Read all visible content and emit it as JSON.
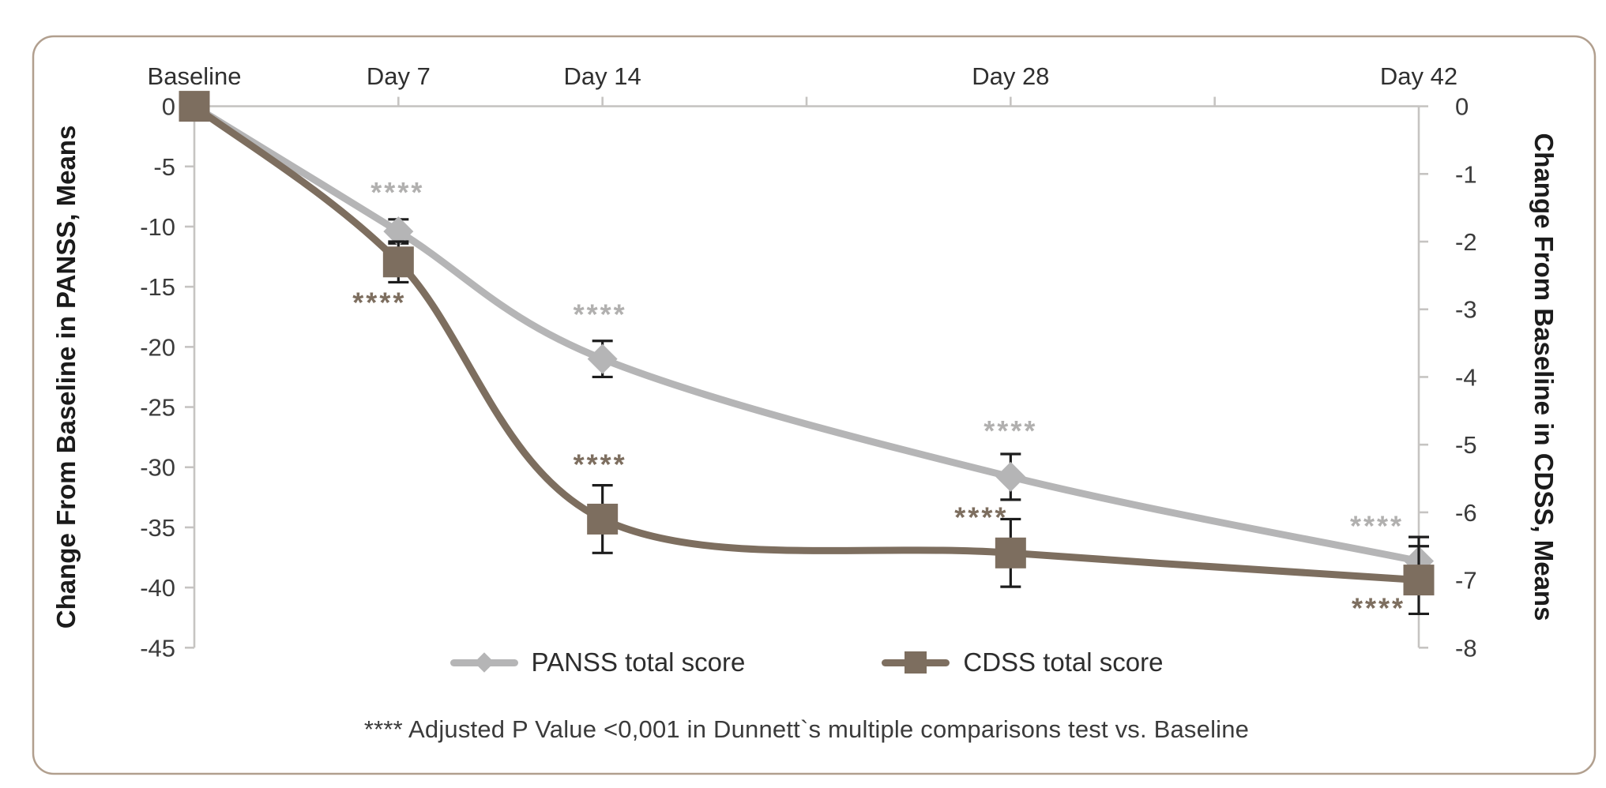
{
  "figure": {
    "background": "#ffffff",
    "border_color": "#b19f8e"
  },
  "chart_data": {
    "type": "line",
    "title": "",
    "grid": false,
    "axis_line_color": "#c6c4c2",
    "error_bar_color": "#1d1d1d",
    "text_color": "#3b3b3b",
    "x_axis": {
      "position": "top",
      "range_days": [
        0,
        42
      ],
      "tick_days": [
        7,
        14,
        21,
        28,
        35
      ],
      "labels": [
        {
          "day": 0,
          "text": "Baseline"
        },
        {
          "day": 7,
          "text": "Day 7"
        },
        {
          "day": 14,
          "text": "Day 14"
        },
        {
          "day": 28,
          "text": "Day 28"
        },
        {
          "day": 42,
          "text": "Day 42"
        }
      ]
    },
    "left_axis": {
      "title": "Change From Baseline in PANSS, Means",
      "max": 0,
      "min": -45,
      "tick_step": 5,
      "tick_labels": [
        "0",
        "-5",
        "-10",
        "-15",
        "-20",
        "-25",
        "-30",
        "-35",
        "-40",
        "-45"
      ]
    },
    "right_axis": {
      "title": "Change From Baseline in CDSS, Means",
      "max": 0,
      "min": -8,
      "tick_step": 1,
      "tick_labels": [
        "0",
        "-1",
        "-2",
        "-3",
        "-4",
        "-5",
        "-6",
        "-7",
        "-8"
      ]
    },
    "series": [
      {
        "id": "panss",
        "name": "PANSS total score",
        "axis": "left",
        "marker": "diamond",
        "color": "#b5b5b6",
        "significance_color": "#b1b0af",
        "days": [
          0,
          7,
          14,
          28,
          42
        ],
        "values": [
          0,
          -10.4,
          -21.0,
          -30.8,
          -37.8
        ],
        "errors": [
          0,
          1.0,
          1.5,
          1.9,
          2.0
        ],
        "significance": [
          "",
          "****",
          "****",
          "****",
          "****"
        ],
        "sig_offsets": [
          [
            0,
            0
          ],
          [
            -1,
            -50
          ],
          [
            -3,
            -57
          ],
          [
            0,
            -59
          ],
          [
            -53,
            -45
          ]
        ]
      },
      {
        "id": "cdss",
        "name": "CDSS total score",
        "axis": "right",
        "marker": "square",
        "color": "#7d6e5f",
        "significance_color": "#7d6e5f",
        "days": [
          0,
          7,
          14,
          28,
          42
        ],
        "values": [
          0,
          -2.3,
          -6.1,
          -6.6,
          -7.0
        ],
        "errors": [
          0,
          0.3,
          0.5,
          0.5,
          0.5
        ],
        "significance": [
          "",
          "****",
          "****",
          "****",
          "****"
        ],
        "sig_offsets": [
          [
            0,
            0
          ],
          [
            -24,
            51
          ],
          [
            -3,
            -70
          ],
          [
            -37,
            -46
          ],
          [
            -51,
            35
          ]
        ]
      }
    ],
    "legend": {
      "position": "bottom-center",
      "items": [
        "PANSS total score",
        "CDSS total score"
      ]
    },
    "footnote": "**** Adjusted P Value <0,001 in Dunnett`s multiple comparisons test vs. Baseline"
  }
}
